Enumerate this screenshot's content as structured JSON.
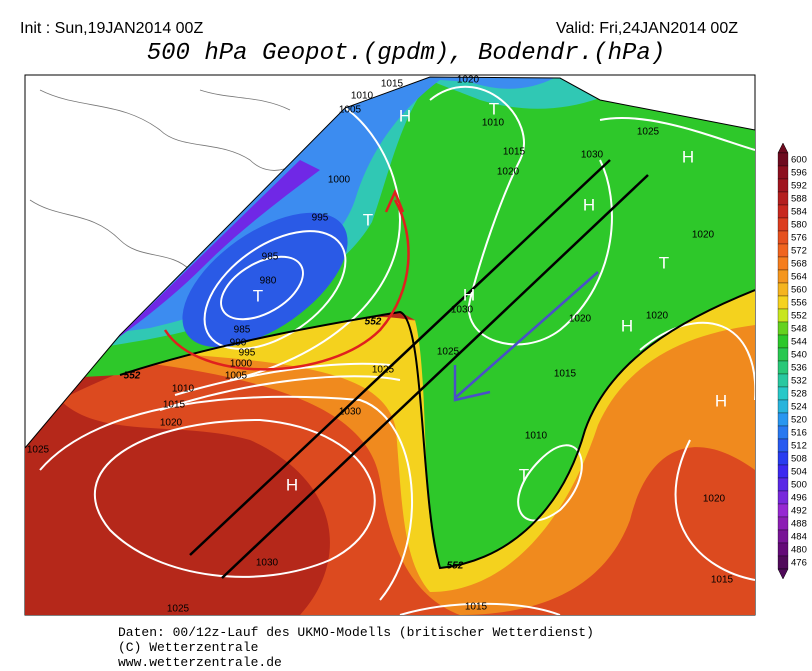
{
  "header": {
    "init": "Init : Sun,19JAN2014 00Z",
    "valid": "Valid: Fri,24JAN2014 00Z",
    "title": "500 hPa Geopot.(gpdm), Bodendr.(hPa)"
  },
  "legend": {
    "labels": [
      600,
      596,
      592,
      588,
      584,
      580,
      576,
      572,
      568,
      564,
      560,
      556,
      552,
      548,
      544,
      540,
      536,
      532,
      528,
      524,
      520,
      516,
      512,
      508,
      504,
      500,
      496,
      492,
      488,
      484,
      480,
      476
    ],
    "colors": [
      "#6e0a1e",
      "#8c0f1e",
      "#a0141e",
      "#b41e1e",
      "#c8281e",
      "#dc3c1e",
      "#e6501e",
      "#f0641e",
      "#f57d1e",
      "#f5961e",
      "#f5b41e",
      "#f5d21e",
      "#c8e61e",
      "#64d21e",
      "#2cc82a",
      "#28c850",
      "#28c878",
      "#28c8a0",
      "#28c8c8",
      "#28b4dc",
      "#2896f0",
      "#2878f0",
      "#285af0",
      "#283cf0",
      "#3c28f0",
      "#5a28e6",
      "#7828dc",
      "#9628d2",
      "#8c1eb4",
      "#781496",
      "#640a78",
      "#500a5a"
    ]
  },
  "map": {
    "isobar_labels": [
      1015,
      1020,
      1010,
      1005,
      1010,
      1025,
      1030,
      1015,
      1020,
      1000,
      995,
      985,
      980,
      985,
      990,
      995,
      1000,
      1005,
      1010,
      1015,
      1020,
      1025,
      1030,
      1025,
      1030,
      1025,
      1020,
      1020,
      1015,
      1010,
      1020,
      1030,
      1025,
      1015,
      1015,
      1020
    ],
    "contour_labels": [
      552,
      552,
      552
    ],
    "centers": [
      "H",
      "T",
      "H",
      "T",
      "H",
      "T",
      "H",
      "T",
      "H",
      "H",
      "T",
      "H"
    ]
  },
  "footer": {
    "lines": [
      "Daten: 00/12z-Lauf des UKMO-Modells (britischer Wetterdienst)",
      "(C) Wetterzentrale",
      "www.wetterzentrale.de"
    ]
  }
}
